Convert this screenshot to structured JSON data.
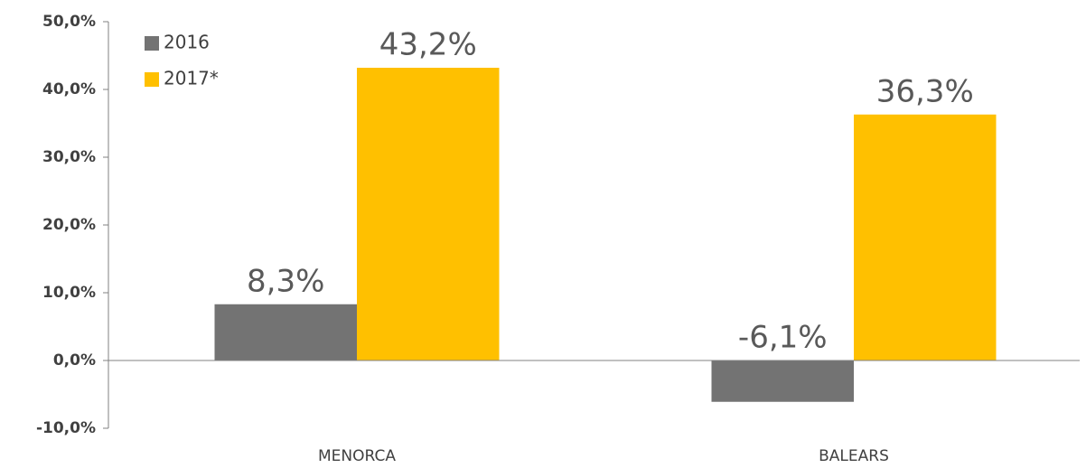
{
  "chart_data": {
    "type": "bar",
    "categories": [
      "MENORCA",
      "BALEARS"
    ],
    "series": [
      {
        "name": "2016",
        "color": "#737373",
        "values": [
          8.3,
          -6.1
        ],
        "value_labels": [
          "8,3%",
          "-6,1%"
        ]
      },
      {
        "name": "2017*",
        "color": "#ffc000",
        "values": [
          43.2,
          36.3
        ],
        "value_labels": [
          "43,2%",
          "36,3%"
        ]
      }
    ],
    "ylim": [
      -10,
      50
    ],
    "yticks": [
      {
        "value": -10,
        "label": "-10,0%"
      },
      {
        "value": 0,
        "label": "0,0%"
      },
      {
        "value": 10,
        "label": "10,0%"
      },
      {
        "value": 20,
        "label": "20,0%"
      },
      {
        "value": 30,
        "label": "30,0%"
      },
      {
        "value": 40,
        "label": "40,0%"
      },
      {
        "value": 50,
        "label": "50,0%"
      }
    ],
    "legend": "upper left"
  }
}
